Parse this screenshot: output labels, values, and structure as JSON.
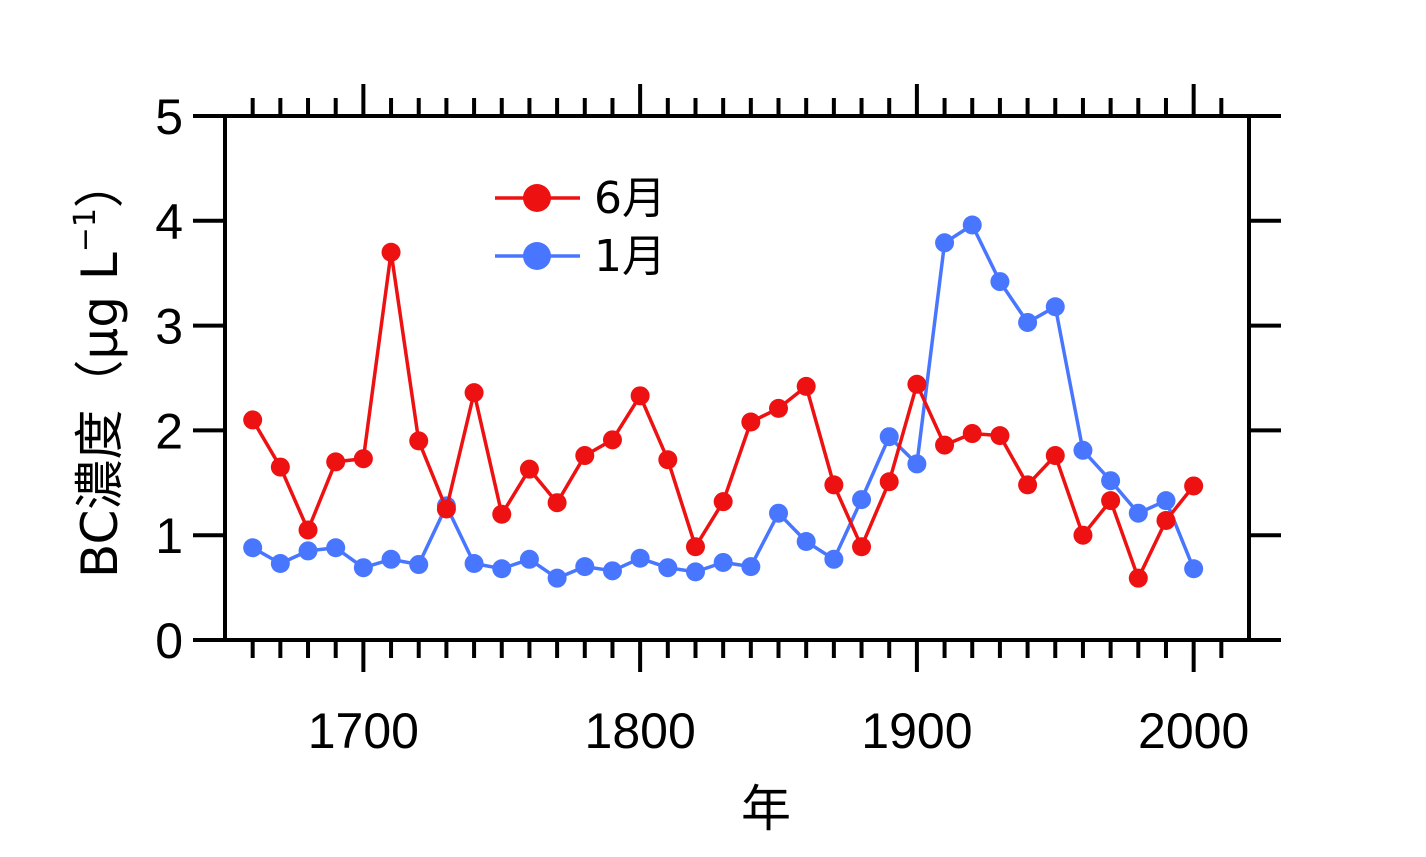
{
  "chart_data": {
    "type": "line",
    "xlabel": "年",
    "ylabel": "BC濃度（μg L",
    "ylabel_exponent": "−1",
    "ylabel_close": "）",
    "xlim": [
      1650,
      2020
    ],
    "ylim": [
      0,
      5
    ],
    "x_ticks": [
      1700,
      1800,
      1900,
      2000
    ],
    "x_tick_labels": [
      "1700",
      "1800",
      "1900",
      "2000"
    ],
    "y_ticks": [
      0,
      1,
      2,
      3,
      4,
      5
    ],
    "y_tick_labels": [
      "0",
      "1",
      "2",
      "3",
      "4",
      "5"
    ],
    "legend_position": "upper-left",
    "grid": false,
    "series": [
      {
        "name": "6月",
        "color": "#ee1111",
        "points": [
          [
            1660,
            2.1
          ],
          [
            1670,
            1.65
          ],
          [
            1680,
            1.05
          ],
          [
            1690,
            1.7
          ],
          [
            1700,
            1.73
          ],
          [
            1710,
            3.7
          ],
          [
            1720,
            1.9
          ],
          [
            1730,
            1.25
          ],
          [
            1740,
            2.36
          ],
          [
            1750,
            1.2
          ],
          [
            1760,
            1.63
          ],
          [
            1770,
            1.31
          ],
          [
            1780,
            1.76
          ],
          [
            1790,
            1.91
          ],
          [
            1800,
            2.33
          ],
          [
            1810,
            1.72
          ],
          [
            1820,
            0.89
          ],
          [
            1830,
            1.32
          ],
          [
            1840,
            2.08
          ],
          [
            1850,
            2.21
          ],
          [
            1860,
            2.42
          ],
          [
            1870,
            1.48
          ],
          [
            1880,
            0.89
          ],
          [
            1890,
            1.51
          ],
          [
            1900,
            2.44
          ],
          [
            1910,
            1.86
          ],
          [
            1920,
            1.97
          ],
          [
            1930,
            1.95
          ],
          [
            1940,
            1.48
          ],
          [
            1950,
            1.76
          ],
          [
            1960,
            1.0
          ],
          [
            1970,
            1.33
          ],
          [
            1980,
            0.59
          ],
          [
            1990,
            1.14
          ],
          [
            2000,
            1.47
          ]
        ]
      },
      {
        "name": "1月",
        "color": "#4876ff",
        "points": [
          [
            1660,
            0.88
          ],
          [
            1670,
            0.73
          ],
          [
            1680,
            0.85
          ],
          [
            1690,
            0.88
          ],
          [
            1700,
            0.69
          ],
          [
            1710,
            0.77
          ],
          [
            1720,
            0.72
          ],
          [
            1730,
            1.28
          ],
          [
            1740,
            0.73
          ],
          [
            1750,
            0.68
          ],
          [
            1760,
            0.77
          ],
          [
            1770,
            0.59
          ],
          [
            1780,
            0.7
          ],
          [
            1790,
            0.66
          ],
          [
            1800,
            0.78
          ],
          [
            1810,
            0.69
          ],
          [
            1820,
            0.65
          ],
          [
            1830,
            0.74
          ],
          [
            1840,
            0.7
          ],
          [
            1850,
            1.21
          ],
          [
            1860,
            0.94
          ],
          [
            1870,
            0.77
          ],
          [
            1880,
            1.34
          ],
          [
            1890,
            1.94
          ],
          [
            1900,
            1.68
          ],
          [
            1910,
            3.79
          ],
          [
            1920,
            3.96
          ],
          [
            1930,
            3.42
          ],
          [
            1940,
            3.03
          ],
          [
            1950,
            3.18
          ],
          [
            1960,
            1.81
          ],
          [
            1970,
            1.52
          ],
          [
            1980,
            1.21
          ],
          [
            1990,
            1.33
          ],
          [
            2000,
            0.68
          ]
        ]
      }
    ]
  }
}
